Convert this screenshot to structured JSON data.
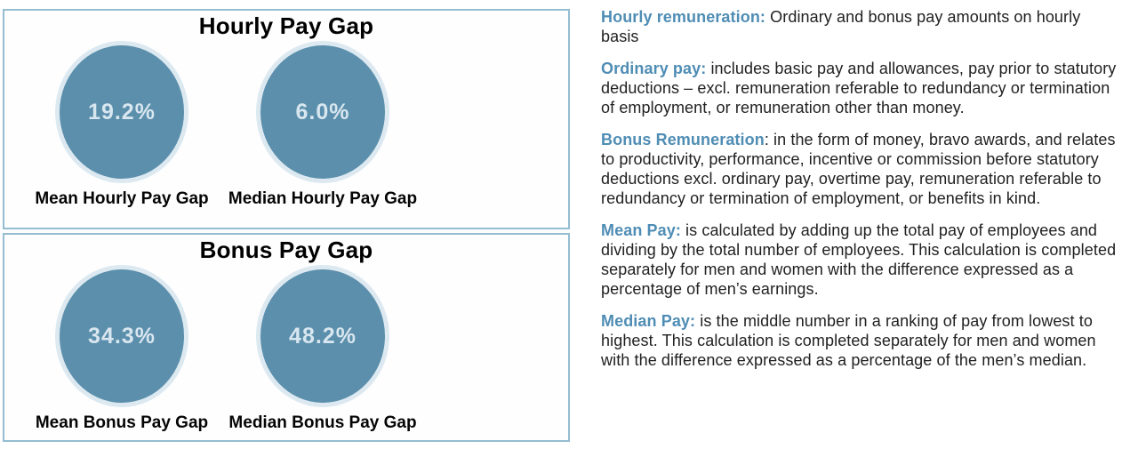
{
  "panels": [
    {
      "title": "Hourly Pay Gap",
      "gauges": [
        {
          "value": "19.2%",
          "label": "Mean Hourly Pay Gap"
        },
        {
          "value": "6.0%",
          "label": "Median Hourly Pay Gap"
        }
      ]
    },
    {
      "title": "Bonus Pay Gap",
      "gauges": [
        {
          "value": "34.3%",
          "label": "Mean Bonus Pay Gap"
        },
        {
          "value": "48.2%",
          "label": "Median Bonus Pay Gap"
        }
      ]
    }
  ],
  "definitions": [
    {
      "term": "Hourly remuneration:",
      "text": " Ordinary and bonus pay amounts on hourly basis"
    },
    {
      "term": "Ordinary pay:",
      "text": " includes basic pay and allowances, pay prior to statutory deductions – excl. remuneration referable to redundancy or termination of employment, or remuneration other than money."
    },
    {
      "term": "Bonus Remuneration",
      "text": ": in the form of money, bravo awards, and relates to productivity, performance, incentive or commission before statutory deductions excl. ordinary pay, overtime pay, remuneration referable to redundancy or termination of employment, or benefits in kind."
    },
    {
      "term": "Mean Pay:",
      "text": " is calculated by adding up the total pay of employees and dividing by the total number of employees. This calculation is completed separately for men and women with the difference expressed as a percentage of men’s earnings."
    },
    {
      "term": "Median Pay:",
      "text": " is the middle number in a ranking of pay from lowest to highest. This calculation is completed separately for men and women with the difference expressed as a percentage of the men’s median."
    }
  ],
  "colors": {
    "panel_border": "#95bdd1",
    "circle_fill": "#5b8fac",
    "circle_ring": "#dde9f1",
    "value_text": "#d8e6ef",
    "term_blue": "#4f8db5"
  },
  "chart_data": [
    {
      "type": "table",
      "title": "Hourly Pay Gap",
      "categories": [
        "Mean Hourly Pay Gap",
        "Median Hourly Pay Gap"
      ],
      "values": [
        19.2,
        6.0
      ],
      "unit": "%"
    },
    {
      "type": "table",
      "title": "Bonus Pay Gap",
      "categories": [
        "Mean Bonus Pay Gap",
        "Median Bonus Pay Gap"
      ],
      "values": [
        34.3,
        48.2
      ],
      "unit": "%"
    }
  ]
}
